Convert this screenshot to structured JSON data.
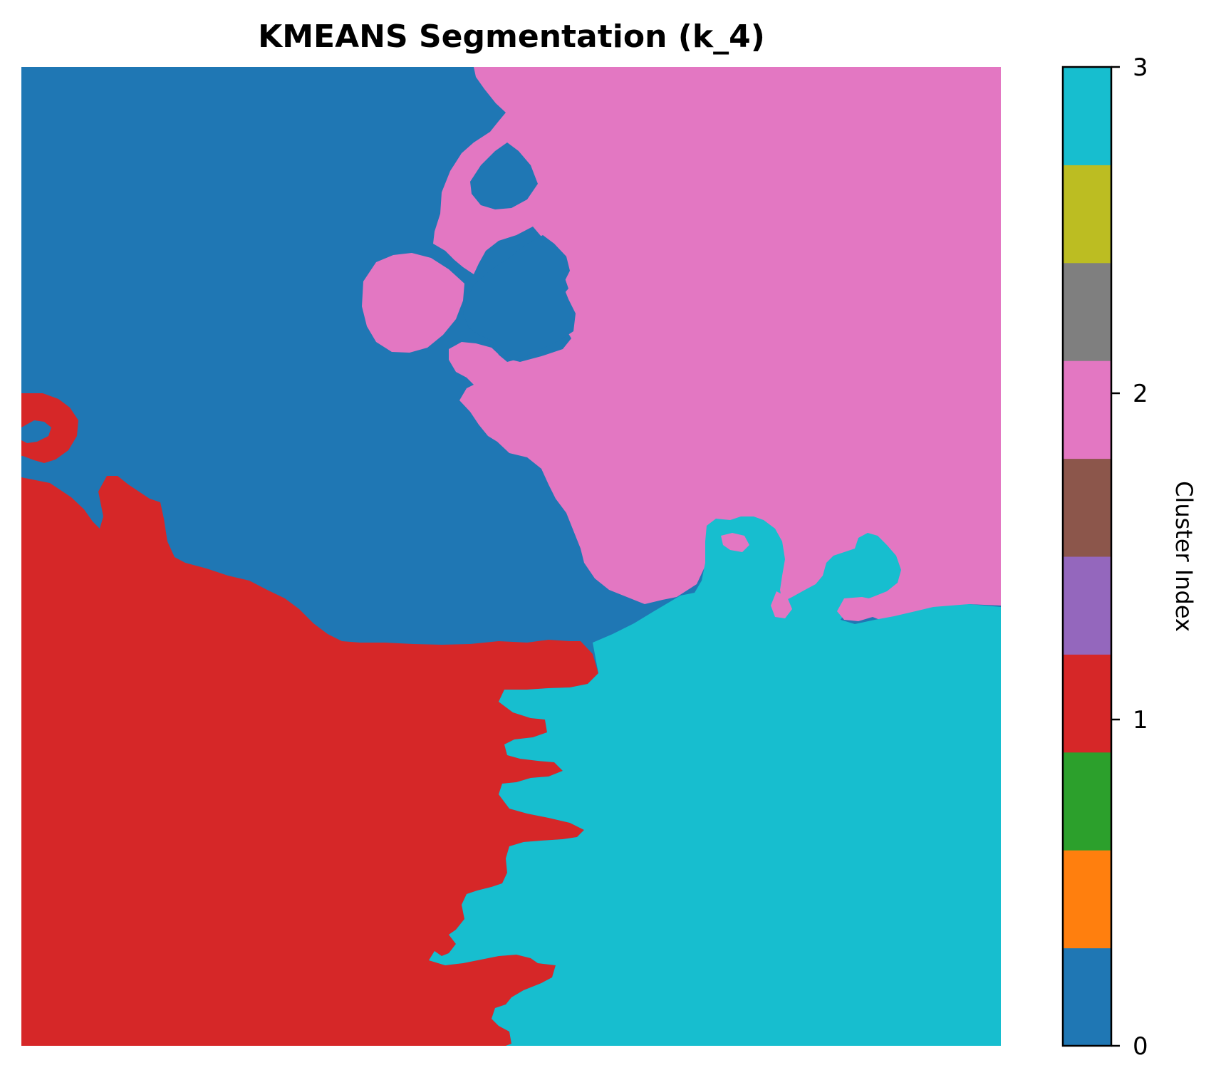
{
  "chart_data": {
    "type": "heatmap",
    "title": "KMEANS Segmentation (k_4)",
    "xlabel": "",
    "ylabel": "",
    "axes_visible": false,
    "image": {
      "description_regions": [
        {
          "cluster": 0,
          "color": "#1f77b4",
          "area": "upper-left"
        },
        {
          "cluster": 2,
          "color": "#e377c2",
          "area": "upper-right"
        },
        {
          "cluster": 1,
          "color": "#d62728",
          "area": "lower-left"
        },
        {
          "cluster": 3,
          "color": "#17becf",
          "area": "lower-right"
        }
      ]
    },
    "colorbar": {
      "label": "Cluster Index",
      "range": [
        0,
        3
      ],
      "ticks": [
        "0",
        "1",
        "2",
        "3"
      ],
      "colormap": "tab10",
      "colors": [
        "#1f77b4",
        "#ff7f0e",
        "#2ca02c",
        "#d62728",
        "#9467bd",
        "#8c564b",
        "#e377c2",
        "#7f7f7f",
        "#bcbd22",
        "#17becf"
      ]
    }
  }
}
